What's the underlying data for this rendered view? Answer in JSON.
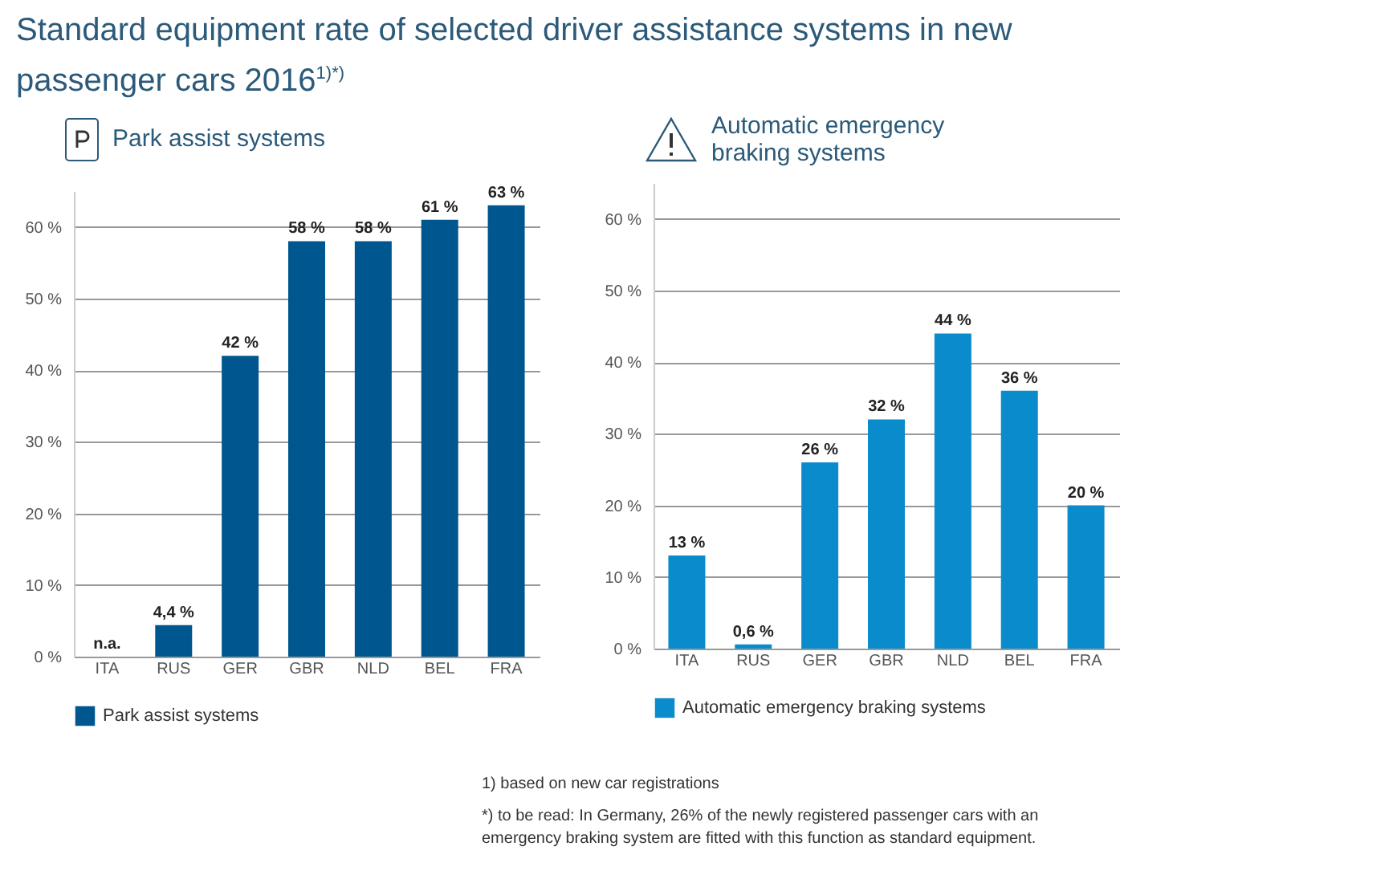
{
  "chart_data": [
    {
      "type": "bar",
      "title": "Standard equipment rate of selected driver assistance systems in new passenger cars 2016$^{1)*)}$",
      "subtitle": "Park assist systems",
      "categories": [
        "ITA",
        "RUS",
        "GER",
        "GBR",
        "NLD",
        "BEL",
        "FRA"
      ],
      "series": [
        {
          "name": "Park assist systems",
          "color": "#00568f",
          "values": [
            null,
            4.4,
            42,
            58,
            58,
            61,
            63
          ],
          "value_labels": [
            "n.a.",
            "4,4 %",
            "42 %",
            "58 %",
            "58 %",
            "61 %",
            "63 %"
          ]
        }
      ],
      "ylim": [
        0,
        65
      ],
      "yticks": [
        {
          "value": 0,
          "label": "0 %"
        },
        {
          "value": 10,
          "label": "10 %"
        },
        {
          "value": 20,
          "label": "20 %"
        },
        {
          "value": 30,
          "label": "30 %"
        },
        {
          "value": 40,
          "label": "40 %"
        },
        {
          "value": 50,
          "label": "50 %"
        },
        {
          "value": 60,
          "label": "60 %"
        }
      ],
      "grid": "y",
      "legend": "bottom",
      "annotations": [
        "1) based on new car registrations",
        "*) to be read: In Germany, 26% of the newly registered passenger cars with an emergency braking system are fitted with this function as standard equipment."
      ]
    },
    {
      "type": "bar",
      "title": "Automatic emergency braking systems",
      "categories": [
        "ITA",
        "RUS",
        "GER",
        "GBR",
        "NLD",
        "BEL",
        "FRA"
      ],
      "series": [
        {
          "name": "Automatic emergency braking systems",
          "color": "#0a8ccc",
          "values": [
            13,
            0.6,
            26,
            32,
            44,
            36,
            20
          ],
          "value_labels": [
            "13 %",
            "0,6 %",
            "26 %",
            "32 %",
            "44 %",
            "36 %",
            "20 %"
          ]
        }
      ],
      "ylim": [
        0,
        65
      ],
      "yticks": [
        {
          "value": 0,
          "label": "0 %"
        },
        {
          "value": 10,
          "label": "10 %"
        },
        {
          "value": 20,
          "label": "20 %"
        },
        {
          "value": 30,
          "label": "30 %"
        },
        {
          "value": 40,
          "label": "40 %"
        },
        {
          "value": 50,
          "label": "50 %"
        },
        {
          "value": 60,
          "label": "60 %"
        }
      ],
      "grid": "y",
      "legend": "bottom"
    }
  ]
}
